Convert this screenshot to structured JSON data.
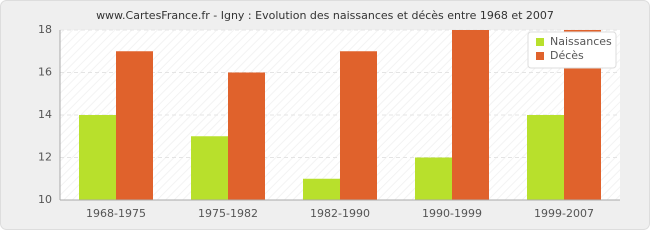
{
  "chart_data": {
    "type": "bar",
    "title": "www.CartesFrance.fr - Igny : Evolution des naissances et décès entre 1968 et 2007",
    "categories": [
      "1968-1975",
      "1975-1982",
      "1982-1990",
      "1990-1999",
      "1999-2007"
    ],
    "series": [
      {
        "name": "Naissances",
        "color": "#b8e02c",
        "values": [
          14,
          13,
          11,
          12,
          14
        ]
      },
      {
        "name": "Décès",
        "color": "#e0622c",
        "values": [
          17,
          16,
          17,
          18,
          18
        ]
      }
    ],
    "ylim": [
      10,
      18
    ],
    "yticks": [
      10,
      12,
      14,
      16,
      18
    ],
    "grid": true,
    "legend": "top-right"
  }
}
